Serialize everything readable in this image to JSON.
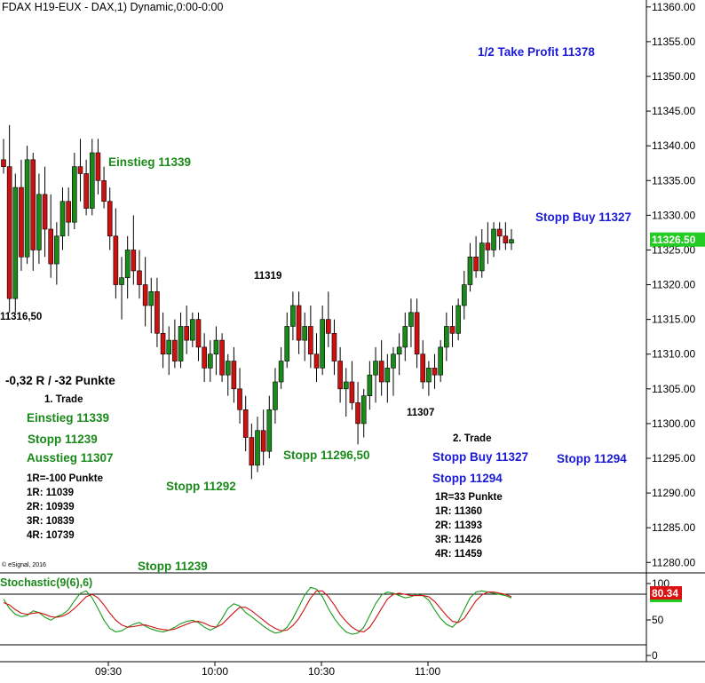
{
  "header": {
    "title": "FDAX H19-EUX - DAX,1) Dynamic,0:00-0:00"
  },
  "colors": {
    "up": "#1a8a1a",
    "down": "#cc1111",
    "stoch_k": "#1a9a1a",
    "stoch_d": "#cc1111",
    "last_price_bg": "#22cc22",
    "stoch_badge_bg": "#dd1111"
  },
  "chart_data": [
    {
      "type": "candlestick",
      "title": "FDAX H19-EUX - DAX,1) Dynamic,0:00-0:00",
      "x_tick_labels": [
        "09:30",
        "10:00",
        "10:30",
        "11:00"
      ],
      "y_tick_labels": [
        "11360.00",
        "11355.00",
        "11350.00",
        "11345.00",
        "11340.00",
        "11335.00",
        "11330.00",
        "11325.00",
        "11320.00",
        "11315.00",
        "11310.00",
        "11305.00",
        "11300.00",
        "11295.00",
        "11290.00",
        "11285.00",
        "11280.00"
      ],
      "ylim": [
        11278.5,
        11361
      ],
      "last_price": "11326.50",
      "series": [
        [
          11338,
          11341,
          11336,
          11337
        ],
        [
          11337,
          11343,
          11316,
          11318
        ],
        [
          11318,
          11336,
          11316,
          11334
        ],
        [
          11334,
          11338,
          11322,
          11324
        ],
        [
          11324,
          11340,
          11323,
          11338
        ],
        [
          11338,
          11339,
          11322,
          11325
        ],
        [
          11325,
          11336,
          11323,
          11333
        ],
        [
          11333,
          11337,
          11324,
          11328
        ],
        [
          11328,
          11333,
          11321,
          11323
        ],
        [
          11323,
          11329,
          11320,
          11327
        ],
        [
          11327,
          11334,
          11325,
          11332
        ],
        [
          11332,
          11334,
          11327,
          11329
        ],
        [
          11329,
          11339,
          11328,
          11337
        ],
        [
          11337,
          11341,
          11332,
          11336
        ],
        [
          11336,
          11338,
          11330,
          11331
        ],
        [
          11331,
          11341,
          11330,
          11339
        ],
        [
          11339,
          11341,
          11333,
          11335
        ],
        [
          11335,
          11337,
          11331,
          11332
        ],
        [
          11332,
          11334,
          11325,
          11327
        ],
        [
          11327,
          11331,
          11318,
          11320
        ],
        [
          11320,
          11324,
          11315,
          11321
        ],
        [
          11321,
          11327,
          11318,
          11325
        ],
        [
          11325,
          11330,
          11320,
          11322
        ],
        [
          11322,
          11325,
          11318,
          11320
        ],
        [
          11320,
          11324,
          11314,
          11317
        ],
        [
          11317,
          11321,
          11313,
          11319
        ],
        [
          11319,
          11321,
          11311,
          11313
        ],
        [
          11313,
          11316,
          11308,
          11310
        ],
        [
          11310,
          11314,
          11307,
          11312
        ],
        [
          11312,
          11315,
          11308,
          11309
        ],
        [
          11309,
          11316,
          11308,
          11314
        ],
        [
          11314,
          11317,
          11310,
          11312
        ],
        [
          11312,
          11316,
          11311,
          11315
        ],
        [
          11315,
          11316,
          11309,
          11311
        ],
        [
          11311,
          11313,
          11306,
          11308
        ],
        [
          11308,
          11312,
          11306,
          11310
        ],
        [
          11310,
          11314,
          11307,
          11312
        ],
        [
          11312,
          11313,
          11306,
          11307
        ],
        [
          11307,
          11310,
          11304,
          11309
        ],
        [
          11309,
          11311,
          11303,
          11305
        ],
        [
          11305,
          11308,
          11300,
          11302
        ],
        [
          11302,
          11304,
          11296,
          11298
        ],
        [
          11298,
          11300,
          11292,
          11294
        ],
        [
          11294,
          11301,
          11293,
          11299
        ],
        [
          11299,
          11302,
          11294,
          11296
        ],
        [
          11296,
          11304,
          11295,
          11302
        ],
        [
          11302,
          11308,
          11300,
          11306
        ],
        [
          11306,
          11311,
          11305,
          11309
        ],
        [
          11309,
          11316,
          11308,
          11314
        ],
        [
          11314,
          11319,
          11312,
          11317
        ],
        [
          11317,
          11319,
          11310,
          11312
        ],
        [
          11312,
          11316,
          11309,
          11314
        ],
        [
          11314,
          11317,
          11308,
          11310
        ],
        [
          11310,
          11313,
          11306,
          11308
        ],
        [
          11308,
          11317,
          11307,
          11315
        ],
        [
          11315,
          11319,
          11311,
          11313
        ],
        [
          11313,
          11315,
          11307,
          11309
        ],
        [
          11309,
          11311,
          11303,
          11305
        ],
        [
          11305,
          11308,
          11301,
          11306
        ],
        [
          11306,
          11309,
          11302,
          11303
        ],
        [
          11303,
          11306,
          11297,
          11300
        ],
        [
          11300,
          11305,
          11298,
          11304
        ],
        [
          11304,
          11309,
          11302,
          11307
        ],
        [
          11307,
          11311,
          11303,
          11309
        ],
        [
          11309,
          11312,
          11304,
          11306
        ],
        [
          11306,
          11310,
          11303,
          11308
        ],
        [
          11308,
          11311,
          11304,
          11310
        ],
        [
          11310,
          11313,
          11307,
          11311
        ],
        [
          11311,
          11316,
          11309,
          11314
        ],
        [
          11314,
          11318,
          11311,
          11316
        ],
        [
          11316,
          11318,
          11308,
          11310
        ],
        [
          11310,
          11312,
          11305,
          11306
        ],
        [
          11306,
          11309,
          11304,
          11308
        ],
        [
          11308,
          11310,
          11305,
          11307
        ],
        [
          11307,
          11312,
          11306,
          11311
        ],
        [
          11311,
          11316,
          11309,
          11314
        ],
        [
          11314,
          11317,
          11311,
          11313
        ],
        [
          11313,
          11318,
          11312,
          11317
        ],
        [
          11317,
          11322,
          11315,
          11320
        ],
        [
          11320,
          11326,
          11319,
          11324
        ],
        [
          11324,
          11327,
          11321,
          11322
        ],
        [
          11322,
          11328,
          11321,
          11326
        ],
        [
          11326,
          11329,
          11323,
          11325
        ],
        [
          11325,
          11329,
          11324,
          11328
        ],
        [
          11328,
          11329,
          11325,
          11327
        ],
        [
          11327,
          11329,
          11325,
          11326
        ],
        [
          11326,
          11328,
          11325,
          11326.5
        ]
      ],
      "series_format": [
        "open",
        "high",
        "low",
        "close"
      ]
    },
    {
      "type": "line",
      "title": "Stochastic(9(6),6)",
      "y_tick_labels": [
        "100",
        "50",
        "0"
      ],
      "ylim": [
        0,
        100
      ],
      "last_value": "80.34",
      "series": [
        {
          "name": "%K",
          "values": [
            78,
            62,
            52,
            48,
            50,
            58,
            55,
            47,
            42,
            48,
            52,
            60,
            75,
            88,
            92,
            80,
            62,
            42,
            28,
            22,
            24,
            30,
            35,
            38,
            32,
            27,
            24,
            22,
            25,
            30,
            36,
            40,
            42,
            38,
            30,
            25,
            30,
            45,
            62,
            70,
            66,
            55,
            48,
            40,
            32,
            25,
            20,
            22,
            30,
            45,
            65,
            85,
            98,
            95,
            82,
            62,
            45,
            32,
            22,
            18,
            20,
            30,
            50,
            70,
            85,
            90,
            88,
            84,
            80,
            82,
            86,
            84,
            76,
            60,
            45,
            35,
            30,
            40,
            60,
            80,
            90,
            92,
            90,
            88,
            86,
            84,
            80
          ]
        },
        {
          "name": "%D",
          "values": [
            72,
            68,
            60,
            54,
            52,
            54,
            55,
            52,
            48,
            47,
            49,
            54,
            62,
            72,
            82,
            86,
            80,
            68,
            54,
            42,
            34,
            30,
            31,
            33,
            34,
            31,
            28,
            26,
            25,
            27,
            31,
            35,
            39,
            40,
            37,
            32,
            30,
            35,
            45,
            55,
            64,
            64,
            58,
            50,
            42,
            34,
            28,
            24,
            25,
            33,
            45,
            62,
            80,
            92,
            92,
            82,
            68,
            52,
            40,
            30,
            24,
            22,
            30,
            45,
            62,
            78,
            86,
            88,
            86,
            84,
            84,
            84,
            82,
            74,
            62,
            50,
            40,
            38,
            45,
            60,
            75,
            85,
            90,
            90,
            88,
            86,
            82
          ]
        }
      ]
    }
  ],
  "annotations": {
    "take_profit": "1/2 Take Profit 11378",
    "einstieg_top": "Einstieg 11339",
    "stopp_buy_right": "Stopp Buy 11327",
    "low_11316": "11316,50",
    "high_11319": "11319",
    "low_11307": "11307",
    "result": "-0,32 R / -32 Punkte",
    "trade1": {
      "title": "1. Trade",
      "einstieg": "Einstieg 11339",
      "stopp": "Stopp 11239",
      "ausstieg": "Ausstieg 11307",
      "r_lines": [
        "1R=-100 Punkte",
        "1R: 11039",
        "2R: 10939",
        "3R: 10839",
        "4R: 10739"
      ]
    },
    "stopp_11292": "Stopp 11292",
    "stopp_11296": "Stopp 11296,50",
    "trade2": {
      "title": "2. Trade",
      "stopp_buy": "Stopp Buy 11327",
      "stopp": "Stopp 11294",
      "r_lines": [
        "1R=33 Punkte",
        "1R: 11360",
        "2R: 11393",
        "3R: 11426",
        "4R: 11459"
      ]
    },
    "stopp_11294_right": "Stopp 11294",
    "stopp_11239_bottom": "Stopp 11239",
    "copyright": "© eSignal, 2016"
  },
  "stochastic": {
    "label": "Stochastic(9(6),6)"
  }
}
